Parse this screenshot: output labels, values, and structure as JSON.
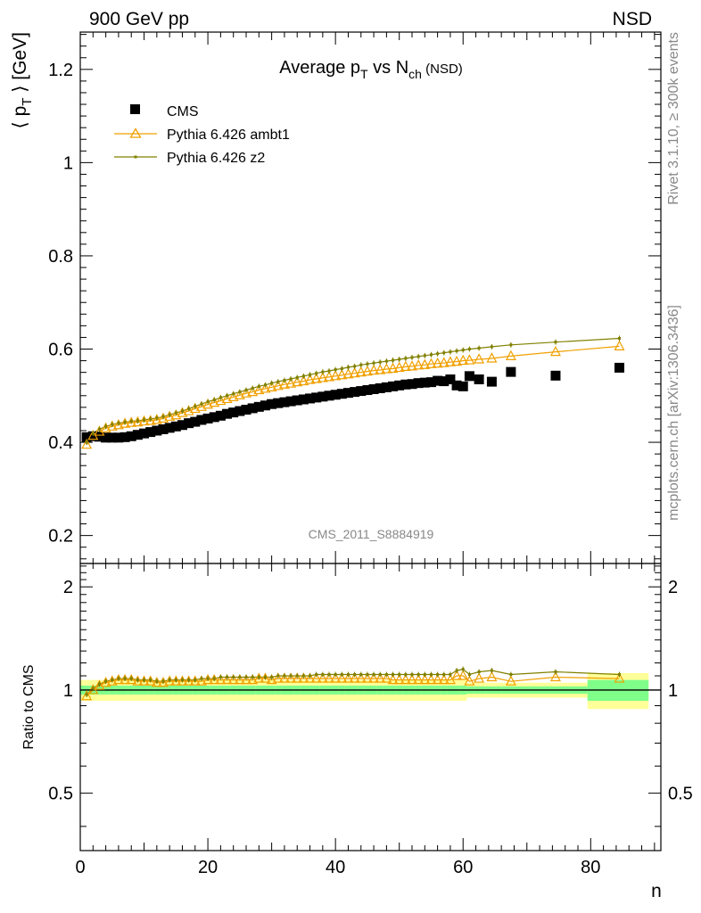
{
  "header": {
    "left_label": "900 GeV pp",
    "right_label": "NSD"
  },
  "side_text": {
    "top": "Rivet 3.1.10, ≥ 300k events",
    "bottom": "mcplots.cern.ch [arXiv:1306.3436]"
  },
  "watermark": "CMS_2011_S8884919",
  "chart_data": [
    {
      "type": "scatter",
      "panel": "main",
      "title": "Average p_T vs N_ch (NSD)",
      "title_parts": {
        "a": "Average p",
        "a_sub": "T",
        "b": " vs N",
        "b_sub": "ch",
        "c": " (NSD)"
      },
      "ylabel": "⟨ p_T ⟩ [GeV]",
      "ylabel_parts": {
        "open": "⟨ p",
        "sub": "T",
        "close": " ⟩ [GeV]"
      },
      "xlim": [
        0,
        91
      ],
      "ylim": [
        0.14,
        1.28
      ],
      "yticks": [
        0.2,
        0.4,
        0.6,
        0.8,
        1,
        1.2
      ],
      "yticklabels": [
        "0.2",
        "0.4",
        "0.6",
        "0.8",
        "1",
        "1.2"
      ],
      "legend_position": "top-left",
      "series": [
        {
          "name": "CMS",
          "marker": "square",
          "color": "#000000",
          "x": [
            1,
            2,
            3,
            4,
            5,
            6,
            7,
            8,
            9,
            10,
            11,
            12,
            13,
            14,
            15,
            16,
            17,
            18,
            19,
            20,
            21,
            22,
            23,
            24,
            25,
            26,
            27,
            28,
            29,
            30,
            31,
            32,
            33,
            34,
            35,
            36,
            37,
            38,
            39,
            40,
            41,
            42,
            43,
            44,
            45,
            46,
            47,
            48,
            49,
            50,
            51,
            52,
            53,
            54,
            55,
            56,
            57,
            58,
            59,
            60,
            61,
            62.5,
            64.5,
            67.5,
            74.5,
            84.5
          ],
          "y": [
            0.411,
            0.413,
            0.412,
            0.41,
            0.41,
            0.41,
            0.411,
            0.413,
            0.416,
            0.419,
            0.422,
            0.425,
            0.428,
            0.431,
            0.434,
            0.437,
            0.441,
            0.444,
            0.448,
            0.451,
            0.454,
            0.457,
            0.461,
            0.464,
            0.467,
            0.47,
            0.473,
            0.476,
            0.479,
            0.482,
            0.484,
            0.486,
            0.488,
            0.49,
            0.492,
            0.494,
            0.496,
            0.498,
            0.5,
            0.502,
            0.504,
            0.506,
            0.508,
            0.51,
            0.512,
            0.514,
            0.516,
            0.518,
            0.52,
            0.522,
            0.524,
            0.525,
            0.527,
            0.528,
            0.529,
            0.532,
            0.531,
            0.535,
            0.522,
            0.52,
            0.542,
            0.535,
            0.53,
            0.551,
            0.543,
            0.56
          ]
        },
        {
          "name": "Pythia 6.426 ambt1",
          "marker": "triangle",
          "color": "#f0a000",
          "x": [
            1,
            2,
            3,
            4,
            5,
            6,
            7,
            8,
            9,
            10,
            11,
            12,
            13,
            14,
            15,
            16,
            17,
            18,
            19,
            20,
            21,
            22,
            23,
            24,
            25,
            26,
            27,
            28,
            29,
            30,
            31,
            32,
            33,
            34,
            35,
            36,
            37,
            38,
            39,
            40,
            41,
            42,
            43,
            44,
            45,
            46,
            47,
            48,
            49,
            50,
            51,
            52,
            53,
            54,
            55,
            56,
            57,
            58,
            59,
            60,
            61,
            62.5,
            64.5,
            67.5,
            74.5,
            84.5
          ],
          "y": [
            0.395,
            0.414,
            0.423,
            0.43,
            0.434,
            0.437,
            0.44,
            0.442,
            0.443,
            0.445,
            0.446,
            0.448,
            0.451,
            0.455,
            0.458,
            0.463,
            0.467,
            0.472,
            0.476,
            0.481,
            0.485,
            0.489,
            0.493,
            0.497,
            0.501,
            0.505,
            0.508,
            0.512,
            0.515,
            0.518,
            0.521,
            0.524,
            0.526,
            0.529,
            0.531,
            0.534,
            0.536,
            0.538,
            0.54,
            0.542,
            0.544,
            0.546,
            0.548,
            0.55,
            0.552,
            0.554,
            0.555,
            0.557,
            0.558,
            0.56,
            0.562,
            0.563,
            0.565,
            0.566,
            0.568,
            0.569,
            0.57,
            0.572,
            0.573,
            0.575,
            0.576,
            0.578,
            0.58,
            0.585,
            0.594,
            0.606
          ]
        },
        {
          "name": "Pythia 6.426 z2",
          "marker": "dot",
          "color": "#808000",
          "x": [
            1,
            2,
            3,
            4,
            5,
            6,
            7,
            8,
            9,
            10,
            11,
            12,
            13,
            14,
            15,
            16,
            17,
            18,
            19,
            20,
            21,
            22,
            23,
            24,
            25,
            26,
            27,
            28,
            29,
            30,
            31,
            32,
            33,
            34,
            35,
            36,
            37,
            38,
            39,
            40,
            41,
            42,
            43,
            44,
            45,
            46,
            47,
            48,
            49,
            50,
            51,
            52,
            53,
            54,
            55,
            56,
            57,
            58,
            59,
            60,
            61,
            62.5,
            64.5,
            67.5,
            74.5,
            84.5
          ],
          "y": [
            0.4,
            0.419,
            0.428,
            0.434,
            0.438,
            0.441,
            0.443,
            0.445,
            0.446,
            0.448,
            0.45,
            0.452,
            0.455,
            0.459,
            0.463,
            0.467,
            0.472,
            0.477,
            0.482,
            0.487,
            0.491,
            0.496,
            0.5,
            0.504,
            0.508,
            0.512,
            0.516,
            0.52,
            0.523,
            0.527,
            0.53,
            0.533,
            0.536,
            0.539,
            0.542,
            0.545,
            0.548,
            0.551,
            0.553,
            0.556,
            0.558,
            0.561,
            0.563,
            0.566,
            0.568,
            0.57,
            0.572,
            0.574,
            0.576,
            0.578,
            0.58,
            0.582,
            0.584,
            0.586,
            0.588,
            0.59,
            0.592,
            0.594,
            0.596,
            0.598,
            0.6,
            0.602,
            0.605,
            0.609,
            0.615,
            0.623
          ]
        }
      ]
    },
    {
      "type": "line",
      "panel": "ratio",
      "ylabel": "Ratio to CMS",
      "xlabel": "n",
      "xlim": [
        0,
        91
      ],
      "ylim": [
        0.34,
        2.34
      ],
      "yticks": [
        0.5,
        1,
        2
      ],
      "yticklabels": [
        "0.5",
        "1",
        "2"
      ],
      "xticks": [
        0,
        20,
        40,
        60,
        80
      ],
      "xticklabels": [
        "0",
        "20",
        "40",
        "60",
        "80"
      ],
      "band_inner_color": "#7fff8a",
      "band_outer_color": "#ffff99",
      "band_inner_halfwidth": 0.03,
      "band_outer_halfwidth": 0.07,
      "series": [
        {
          "name": "Pythia 6.426 ambt1",
          "marker": "triangle",
          "color": "#f0a000",
          "x": [
            1,
            2,
            3,
            4,
            5,
            6,
            7,
            8,
            9,
            10,
            11,
            12,
            13,
            14,
            15,
            16,
            17,
            18,
            19,
            20,
            21,
            22,
            23,
            24,
            25,
            26,
            27,
            28,
            29,
            30,
            31,
            32,
            33,
            34,
            35,
            36,
            37,
            38,
            39,
            40,
            41,
            42,
            43,
            44,
            45,
            46,
            47,
            48,
            49,
            50,
            51,
            52,
            53,
            54,
            55,
            56,
            57,
            58,
            59,
            60,
            61,
            62.5,
            64.5,
            67.5,
            74.5,
            84.5
          ],
          "y": [
            0.96,
            1.0,
            1.03,
            1.05,
            1.06,
            1.07,
            1.07,
            1.07,
            1.06,
            1.06,
            1.06,
            1.05,
            1.05,
            1.06,
            1.06,
            1.06,
            1.06,
            1.06,
            1.06,
            1.07,
            1.07,
            1.07,
            1.07,
            1.07,
            1.07,
            1.07,
            1.07,
            1.08,
            1.08,
            1.07,
            1.08,
            1.08,
            1.08,
            1.08,
            1.08,
            1.08,
            1.08,
            1.08,
            1.08,
            1.08,
            1.08,
            1.08,
            1.08,
            1.08,
            1.08,
            1.08,
            1.08,
            1.08,
            1.07,
            1.07,
            1.07,
            1.07,
            1.07,
            1.07,
            1.07,
            1.07,
            1.07,
            1.07,
            1.1,
            1.1,
            1.06,
            1.08,
            1.09,
            1.06,
            1.09,
            1.08
          ]
        },
        {
          "name": "Pythia 6.426 z2",
          "marker": "dot",
          "color": "#808000",
          "x": [
            1,
            2,
            3,
            4,
            5,
            6,
            7,
            8,
            9,
            10,
            11,
            12,
            13,
            14,
            15,
            16,
            17,
            18,
            19,
            20,
            21,
            22,
            23,
            24,
            25,
            26,
            27,
            28,
            29,
            30,
            31,
            32,
            33,
            34,
            35,
            36,
            37,
            38,
            39,
            40,
            41,
            42,
            43,
            44,
            45,
            46,
            47,
            48,
            49,
            50,
            51,
            52,
            53,
            54,
            55,
            56,
            57,
            58,
            59,
            60,
            61,
            62.5,
            64.5,
            67.5,
            74.5,
            84.5
          ],
          "y": [
            0.97,
            1.01,
            1.04,
            1.06,
            1.07,
            1.08,
            1.08,
            1.08,
            1.07,
            1.07,
            1.07,
            1.06,
            1.06,
            1.07,
            1.07,
            1.07,
            1.07,
            1.07,
            1.08,
            1.08,
            1.08,
            1.09,
            1.09,
            1.09,
            1.09,
            1.09,
            1.09,
            1.09,
            1.09,
            1.09,
            1.1,
            1.1,
            1.1,
            1.1,
            1.1,
            1.1,
            1.11,
            1.11,
            1.11,
            1.11,
            1.11,
            1.11,
            1.11,
            1.11,
            1.11,
            1.11,
            1.11,
            1.11,
            1.11,
            1.11,
            1.11,
            1.11,
            1.11,
            1.11,
            1.11,
            1.11,
            1.11,
            1.11,
            1.14,
            1.15,
            1.11,
            1.13,
            1.14,
            1.11,
            1.13,
            1.11
          ]
        }
      ]
    }
  ]
}
